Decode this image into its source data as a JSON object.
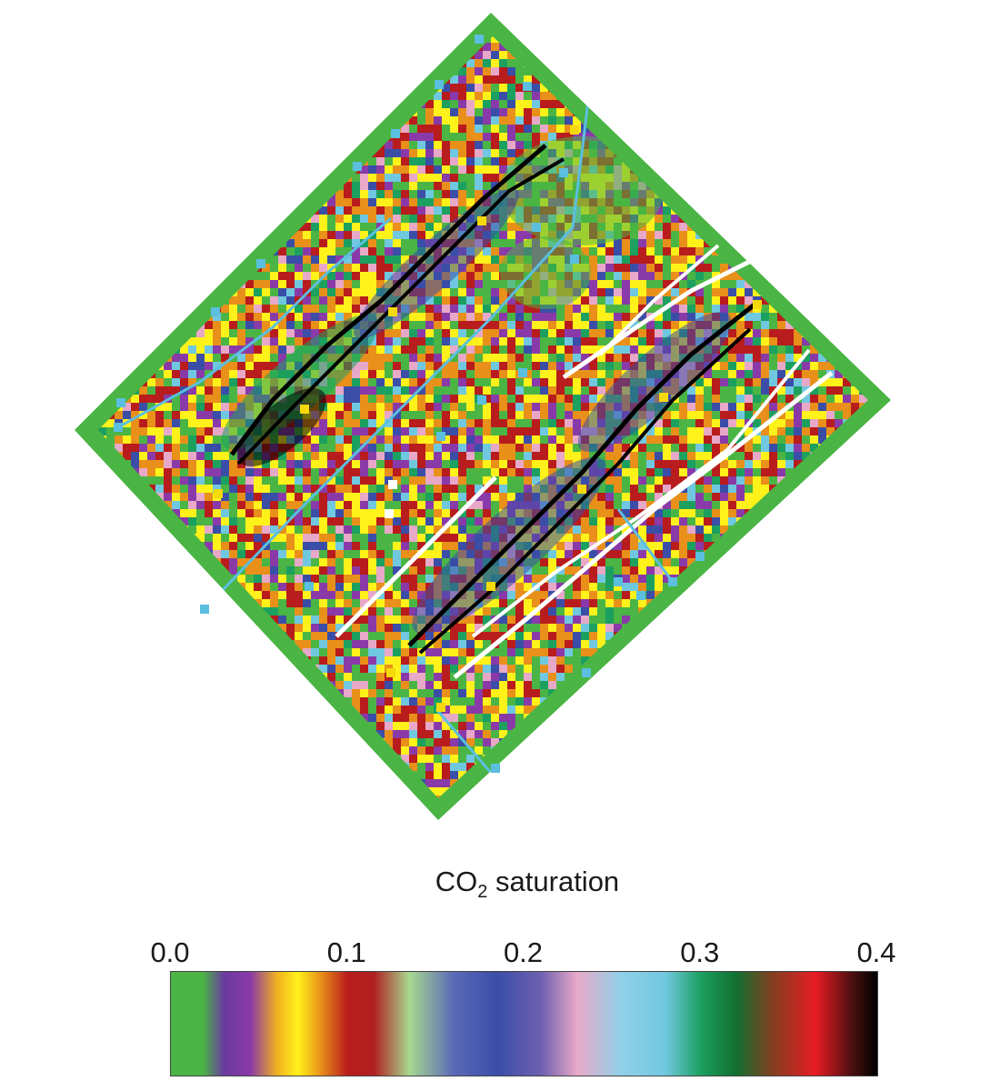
{
  "chart_data": {
    "type": "heatmap",
    "colorbar": {
      "title_main": "CO",
      "title_subscript": "2",
      "title_rest": " saturation",
      "min": 0.0,
      "max": 0.4,
      "ticks": [
        {
          "value": 0.0,
          "label": "0.0"
        },
        {
          "value": 0.1,
          "label": "0.1"
        },
        {
          "value": 0.2,
          "label": "0.2"
        },
        {
          "value": 0.3,
          "label": "0.3"
        },
        {
          "value": 0.4,
          "label": "0.4"
        }
      ],
      "color_stops": [
        {
          "value": 0.0,
          "color": "#4ab544"
        },
        {
          "value": 0.018,
          "color": "#4ab544"
        },
        {
          "value": 0.03,
          "color": "#6a3aa0"
        },
        {
          "value": 0.045,
          "color": "#8a3aa8"
        },
        {
          "value": 0.06,
          "color": "#f0b020"
        },
        {
          "value": 0.072,
          "color": "#fff21a"
        },
        {
          "value": 0.085,
          "color": "#e8901a"
        },
        {
          "value": 0.1,
          "color": "#b81c1c"
        },
        {
          "value": 0.115,
          "color": "#b02020"
        },
        {
          "value": 0.135,
          "color": "#a8d890"
        },
        {
          "value": 0.16,
          "color": "#5a6ab8"
        },
        {
          "value": 0.185,
          "color": "#3a4ea8"
        },
        {
          "value": 0.21,
          "color": "#7060b0"
        },
        {
          "value": 0.23,
          "color": "#e8a8c8"
        },
        {
          "value": 0.255,
          "color": "#90d0e8"
        },
        {
          "value": 0.28,
          "color": "#70c8e0"
        },
        {
          "value": 0.3,
          "color": "#1ca060"
        },
        {
          "value": 0.32,
          "color": "#107030"
        },
        {
          "value": 0.34,
          "color": "#804020"
        },
        {
          "value": 0.365,
          "color": "#e81c24"
        },
        {
          "value": 0.385,
          "color": "#501010"
        },
        {
          "value": 0.4,
          "color": "#000000"
        }
      ]
    },
    "field_palette": [
      "#4ab544",
      "#8a3aa8",
      "#fff21a",
      "#e8901a",
      "#b81c1c",
      "#3a4ea8",
      "#e8a8c8",
      "#70c8e0",
      "#1ca060",
      "#000000"
    ],
    "injector_color": "#000000",
    "producer_color": "#ffffff",
    "marker_yellow": "#f5d90a",
    "marker_cyan": "#5bbfe0"
  }
}
